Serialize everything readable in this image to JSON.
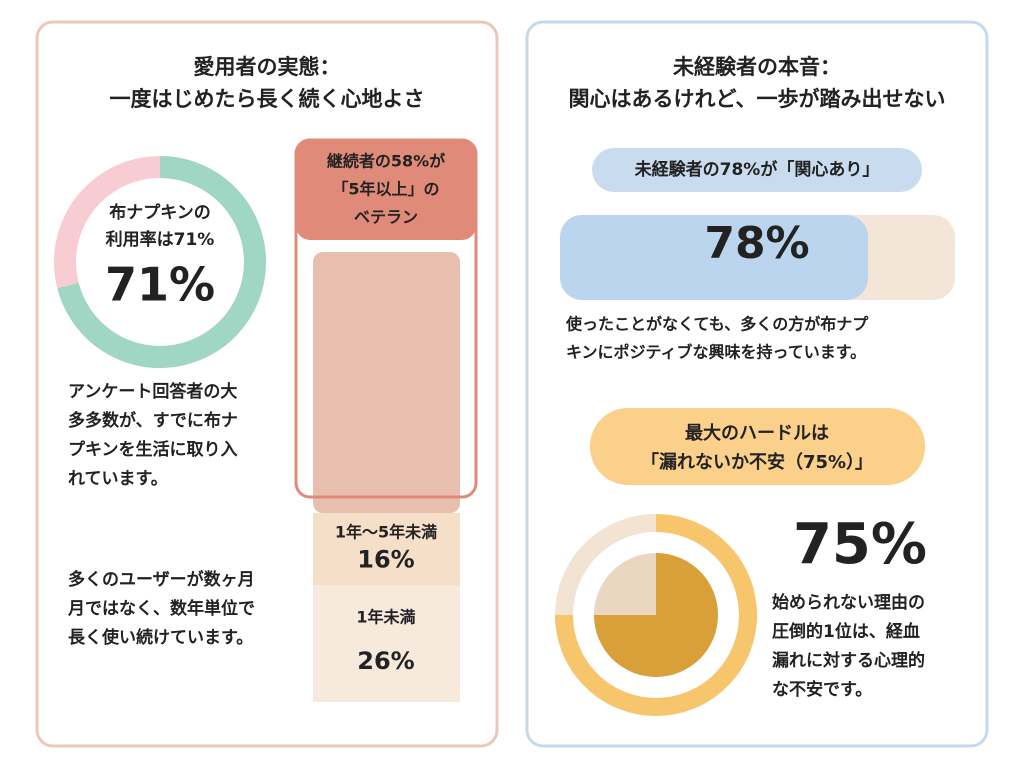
{
  "left": {
    "title_lines": [
      "愛用者の実態：",
      "一度はじめたら長く続く心地よさ"
    ],
    "donut": {
      "label_lines": [
        "布ナプキンの",
        "利用率は71%"
      ],
      "value": 71,
      "value_label": "71%",
      "color": "#9fd6c4",
      "track_color": "#f7cdd3"
    },
    "text1_lines": [
      "アンケート回答者の大",
      "多多数が、すでに布ナ",
      "プキンを生活に取り入",
      "れています。"
    ],
    "text2_lines": [
      "多くのユーザーが数ヶ月",
      "月ではなく、数年単位で",
      "長く使い続けています。"
    ],
    "stack": {
      "segments": [
        {
          "label_lines": [
            "継続者の58%が",
            "「5年以上」の",
            "ベテラン"
          ],
          "value": 58,
          "color": "#e8bfae"
        },
        {
          "label_lines": [
            "1年〜5年未満"
          ],
          "value": 16,
          "value_label": "16%",
          "color": "#f6dfc8"
        },
        {
          "label_lines": [
            "1年未満"
          ],
          "value": 26,
          "value_label": "26%",
          "color": "#f8e9dd"
        }
      ]
    }
  },
  "right": {
    "title_lines": [
      "未経験者の本音：",
      "関心はあるけれど、一歩が踏み出せない"
    ],
    "pill1": "未経験者の78%が「関心あり」",
    "bar": {
      "value": 78,
      "value_label": "78%",
      "color": "#bcd5ee",
      "track_color": "#f4e6d6"
    },
    "text1_lines": [
      "使ったことがなくても、多くの方が布ナプ",
      "キンにポジティブな興味を持っています。"
    ],
    "pill2_lines": [
      "最大のハードルは",
      "「漏れないか不安（75%）」"
    ],
    "ring": {
      "value": 75,
      "value_label": "75%",
      "color": "#f7c56c",
      "track_color": "#f3e3d3",
      "pie_color": "#d9a03a",
      "pie_track_color": "#ead7c2"
    },
    "text2_lines": [
      "始められない理由の",
      "圧倒的1位は、経血",
      "漏れに対する心理的",
      "な不安です。"
    ]
  }
}
